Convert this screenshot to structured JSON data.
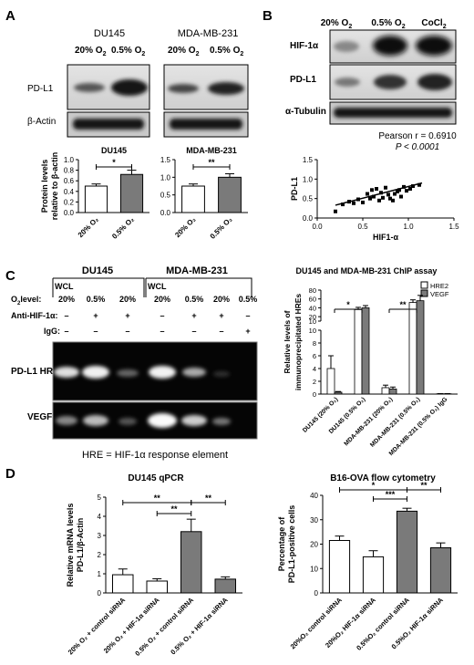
{
  "panels": {
    "A": {
      "letter": "A",
      "col_labels": [
        "DU145",
        "MDA-MB-231"
      ],
      "lane_labels": [
        "20% O",
        "0.5% O",
        "20% O",
        "0.5% O"
      ],
      "sub2": "2",
      "blot_rows": [
        "PD-L1",
        "β-Actin"
      ]
    },
    "B": {
      "letter": "B",
      "lane_labels": [
        "20% O",
        "0.5% O",
        "CoCl"
      ],
      "sub2": "2",
      "blot_rows": [
        "HIF-1α",
        "PD-L1",
        "α-Tubulin"
      ]
    },
    "C": {
      "letter": "C",
      "cell_lines": [
        "DU145",
        "MDA-MB-231"
      ],
      "wcl": "WCL",
      "row_headers": [
        "O",
        "level:",
        "Anti-HIF-1α:",
        "IgG:"
      ],
      "o2_values": [
        "20%",
        "0.5%",
        "20%",
        "20%",
        "0.5%",
        "20%",
        "0.5%"
      ],
      "anti_values": [
        "–",
        "+",
        "+",
        "–",
        "+",
        "+",
        "–"
      ],
      "igg_values": [
        "–",
        "–",
        "–",
        "–",
        "–",
        "–",
        "+"
      ],
      "gel_rows": [
        "PD-L1 HRE",
        "VEGF"
      ],
      "footnote": "HRE = HIF-1α response element"
    },
    "D": {
      "letter": "D"
    }
  },
  "colors": {
    "white_bar": "#ffffff",
    "gray_bar": "#7a7a7a",
    "outline": "#000000"
  },
  "chart_data": [
    {
      "id": "A_DU145",
      "type": "bar",
      "title": "DU145",
      "ylabel": "Protein levels relative to β-actin",
      "ylim": [
        0,
        1.0
      ],
      "yticks": [
        "0.0",
        "0.2",
        "0.4",
        "0.6",
        "0.8",
        "1.0"
      ],
      "categories": [
        "20% O₂",
        "0.5% O₂"
      ],
      "values": [
        0.5,
        0.72
      ],
      "errors": [
        0.04,
        0.08
      ],
      "colors": [
        "white",
        "gray"
      ],
      "sig": [
        {
          "from": 0,
          "to": 1,
          "label": "*"
        }
      ]
    },
    {
      "id": "A_MDA",
      "type": "bar",
      "title": "MDA-MB-231",
      "ylim": [
        0,
        1.5
      ],
      "yticks": [
        "0.0",
        "0.5",
        "1.0",
        "1.5"
      ],
      "categories": [
        "20% O₂",
        "0.5% O₂"
      ],
      "values": [
        0.75,
        1.0
      ],
      "errors": [
        0.06,
        0.1
      ],
      "colors": [
        "white",
        "gray"
      ],
      "sig": [
        {
          "from": 0,
          "to": 1,
          "label": "**"
        }
      ]
    },
    {
      "id": "B_scatter",
      "type": "scatter",
      "stat_line1": "Pearson r = 0.6910",
      "stat_line2": "P < 0.0001",
      "xlabel": "HIF1-α",
      "ylabel": "PD-L1",
      "xlim": [
        0,
        1.5
      ],
      "ylim": [
        0,
        1.5
      ],
      "xticks": [
        "0.0",
        "0.5",
        "1.0",
        "1.5"
      ],
      "yticks": [
        "0.0",
        "0.5",
        "1.0",
        "1.5"
      ],
      "points": [
        [
          0.2,
          0.17
        ],
        [
          0.28,
          0.35
        ],
        [
          0.35,
          0.42
        ],
        [
          0.4,
          0.38
        ],
        [
          0.45,
          0.48
        ],
        [
          0.5,
          0.4
        ],
        [
          0.55,
          0.62
        ],
        [
          0.58,
          0.5
        ],
        [
          0.6,
          0.72
        ],
        [
          0.62,
          0.55
        ],
        [
          0.65,
          0.75
        ],
        [
          0.68,
          0.45
        ],
        [
          0.7,
          0.65
        ],
        [
          0.72,
          0.52
        ],
        [
          0.75,
          0.78
        ],
        [
          0.78,
          0.6
        ],
        [
          0.8,
          0.5
        ],
        [
          0.83,
          0.45
        ],
        [
          0.85,
          0.62
        ],
        [
          0.88,
          0.68
        ],
        [
          0.9,
          0.72
        ],
        [
          0.92,
          0.55
        ],
        [
          0.95,
          0.8
        ],
        [
          0.98,
          0.7
        ],
        [
          1.02,
          0.75
        ],
        [
          1.05,
          0.82
        ],
        [
          1.12,
          0.85
        ]
      ],
      "fit": {
        "slope": 0.6,
        "intercept": 0.21,
        "x_range": [
          0.2,
          1.15
        ]
      }
    },
    {
      "id": "C_chip",
      "type": "bar",
      "title": "DU145 and MDA-MB-231 ChIP assay",
      "ylabel": "Relative levels of immunoprecipitated HREs",
      "broken_axis": true,
      "ylim_lower": [
        0,
        10
      ],
      "ylim_upper": [
        10,
        80
      ],
      "yticks_lower": [
        "0",
        "2",
        "4",
        "6",
        "8",
        "10"
      ],
      "yticks_upper": [
        "10",
        "20",
        "40",
        "60",
        "80"
      ],
      "categories": [
        "DU145 (20% O₂)",
        "DU145 (0.5% O₂)",
        "MDA-MB-231 (20% O₂)",
        "MDA-MB-231 (0.5% O₂)",
        "MDA-MB-231 (0.5% O₂) IgG"
      ],
      "series": [
        {
          "name": "HRE2",
          "values": [
            4.0,
            36,
            1.0,
            52,
            0.05
          ],
          "errors": [
            2.0,
            5,
            0.4,
            6,
            0.02
          ],
          "color": "white"
        },
        {
          "name": "VEGF",
          "values": [
            0.3,
            40,
            0.8,
            56,
            0.05
          ],
          "errors": [
            0.1,
            5,
            0.3,
            12,
            0.02
          ],
          "color": "gray"
        }
      ],
      "sig": [
        {
          "from": 0,
          "to": 1,
          "label": "*"
        },
        {
          "from": 2,
          "to": 3,
          "label": "**"
        }
      ]
    },
    {
      "id": "D_qpcr",
      "type": "bar",
      "title": "DU145 qPCR",
      "ylabel": "Relative mRNA levels PD-L1/β-Actin",
      "ylim": [
        0,
        5
      ],
      "yticks": [
        "0",
        "1",
        "2",
        "3",
        "4",
        "5"
      ],
      "categories": [
        "20% O₂ + control siRNA",
        "20% O₂ + HIF-1α siRNA",
        "0.5% O₂ + control siRNA",
        "0.5% O₂ + HIF-1α siRNA"
      ],
      "values": [
        0.95,
        0.62,
        3.2,
        0.72
      ],
      "errors": [
        0.3,
        0.12,
        0.65,
        0.12
      ],
      "colors": [
        "white",
        "white",
        "gray",
        "gray"
      ],
      "sig": [
        {
          "from": 0,
          "to": 2,
          "label": "**",
          "level": 0
        },
        {
          "from": 1,
          "to": 2,
          "label": "**",
          "level": 1
        },
        {
          "from": 2,
          "to": 3,
          "label": "**",
          "level": 0
        }
      ]
    },
    {
      "id": "D_flow",
      "type": "bar",
      "title": "B16-OVA flow cytometry",
      "ylabel": "Percentage of PD-L1-positive cells",
      "ylim": [
        0,
        40
      ],
      "yticks": [
        "0",
        "10",
        "20",
        "30",
        "40"
      ],
      "categories": [
        "20%O₂ control siRNA",
        "20%O₂ HIF-1α siRNA",
        "0.5%O₂ control siRNA",
        "0.5%O₂ HIF-1α siRNA"
      ],
      "values": [
        21.5,
        14.8,
        33.5,
        18.5
      ],
      "errors": [
        1.8,
        2.5,
        1.2,
        2.0
      ],
      "colors": [
        "white",
        "white",
        "gray",
        "gray"
      ],
      "sig": [
        {
          "from": 0,
          "to": 2,
          "label": "*",
          "level": 0
        },
        {
          "from": 1,
          "to": 2,
          "label": "***",
          "level": 1
        },
        {
          "from": 2,
          "to": 3,
          "label": "**",
          "level": 0
        }
      ]
    }
  ]
}
